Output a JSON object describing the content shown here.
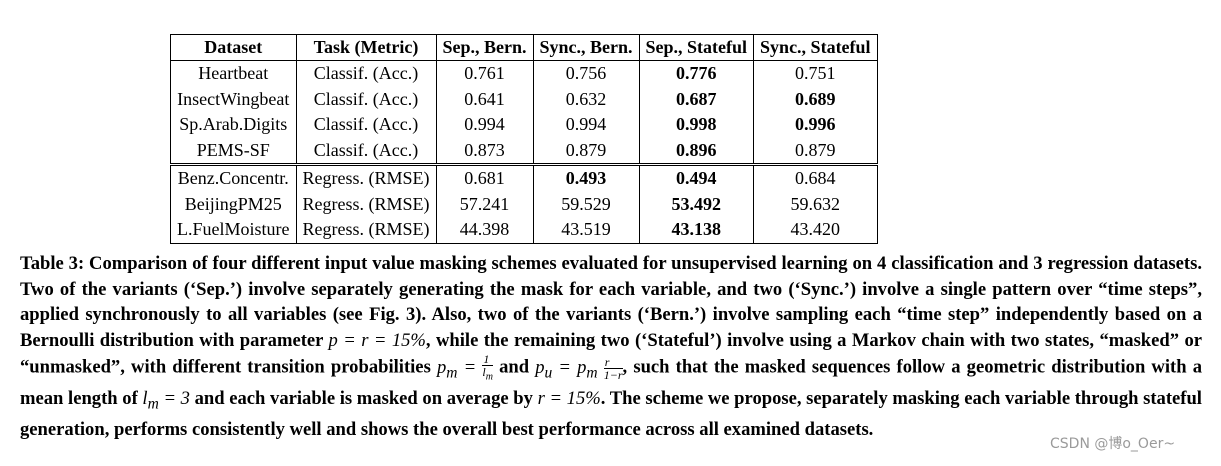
{
  "table": {
    "headers": [
      "Dataset",
      "Task (Metric)",
      "Sep., Bern.",
      "Sync., Bern.",
      "Sep., Stateful",
      "Sync., Stateful"
    ],
    "classification_rows": [
      {
        "dataset": "Heartbeat",
        "task": "Classif. (Acc.)",
        "values": [
          "0.761",
          "0.756",
          "0.776",
          "0.751"
        ],
        "bold": [
          false,
          false,
          true,
          false
        ]
      },
      {
        "dataset": "InsectWingbeat",
        "task": "Classif. (Acc.)",
        "values": [
          "0.641",
          "0.632",
          "0.687",
          "0.689"
        ],
        "bold": [
          false,
          false,
          true,
          true
        ]
      },
      {
        "dataset": "Sp.Arab.Digits",
        "task": "Classif. (Acc.)",
        "values": [
          "0.994",
          "0.994",
          "0.998",
          "0.996"
        ],
        "bold": [
          false,
          false,
          true,
          true
        ]
      },
      {
        "dataset": "PEMS-SF",
        "task": "Classif. (Acc.)",
        "values": [
          "0.873",
          "0.879",
          "0.896",
          "0.879"
        ],
        "bold": [
          false,
          false,
          true,
          false
        ]
      }
    ],
    "regression_rows": [
      {
        "dataset": "Benz.Concentr.",
        "task": "Regress. (RMSE)",
        "values": [
          "0.681",
          "0.493",
          "0.494",
          "0.684"
        ],
        "bold": [
          false,
          true,
          true,
          false
        ]
      },
      {
        "dataset": "BeijingPM25",
        "task": "Regress. (RMSE)",
        "values": [
          "57.241",
          "59.529",
          "53.492",
          "59.632"
        ],
        "bold": [
          false,
          false,
          true,
          false
        ]
      },
      {
        "dataset": "L.FuelMoisture",
        "task": "Regress. (RMSE)",
        "values": [
          "44.398",
          "43.519",
          "43.138",
          "43.420"
        ],
        "bold": [
          false,
          false,
          true,
          false
        ]
      }
    ]
  },
  "caption": {
    "p1": "Table 3: Comparison of four different input value masking schemes evaluated for unsupervised learning on 4 classification and 3 regression datasets. Two of the variants (‘Sep.’) involve separately generating the mask for each variable, and two (‘Sync.’) involve a single pattern over “time steps”, applied synchronously to all variables (see Fig. 3). Also, two of the variants (‘Bern.’) involve sampling each “time step” independently based on a Bernoulli distribution with parameter",
    "m1": "p = r = 15%",
    "p2": ", while the remaining two (‘Stateful’) involve using a Markov chain with two states, “masked” or “unmasked”, with different transition probabilities",
    "m2": "p",
    "m2sub": "m",
    "m3": "=",
    "frac1_num": "1",
    "frac1_den": "l",
    "frac1_den_sub": "m",
    "p3": " and ",
    "m4": "p",
    "m4sub": "u",
    "m5": "= p",
    "m5sub": "m",
    "frac2_num": "r",
    "frac2_den": "1−r",
    "p4": ", such that the masked sequences follow a geometric distribution with a mean length of",
    "m6": "l",
    "m6sub": "m",
    "m7": "= 3",
    "p5": "and each variable is masked on average by",
    "m8": "r = 15%",
    "p6": ". The scheme we propose, separately masking each variable through stateful generation, performs consistently well and shows the overall best performance across all examined datasets."
  },
  "watermark": "CSDN @博o_Oer~"
}
